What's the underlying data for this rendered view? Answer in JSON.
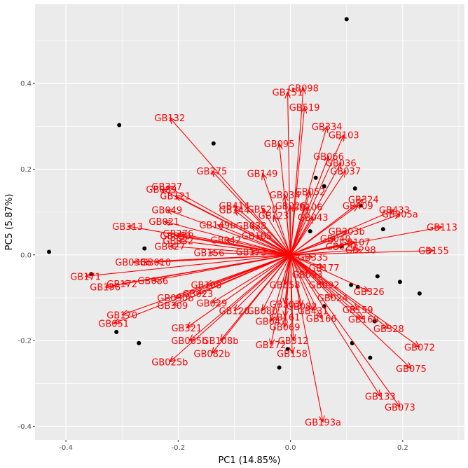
{
  "chart_data": {
    "type": "biplot",
    "xlabel": "PC1 (14.85%)",
    "ylabel": "PC5 (5.87%)",
    "xlim": [
      -0.455,
      0.31
    ],
    "ylim": [
      -0.432,
      0.585
    ],
    "x_ticks": [
      -0.4,
      -0.2,
      0.0,
      0.2
    ],
    "x_tick_labels": [
      "-0.4",
      "-0.2",
      "0.0",
      "0.2"
    ],
    "y_ticks": [
      -0.4,
      -0.2,
      0.0,
      0.2,
      0.4
    ],
    "y_tick_labels": [
      "-0.4",
      "-0.2",
      "0.0",
      "0.2",
      "0.4"
    ],
    "grid": true,
    "colors": {
      "panel": "#ebebeb",
      "grid": "#ffffff",
      "vector": "#ff0000",
      "point": "#000000"
    },
    "points": [
      {
        "x": 0.1,
        "y": 0.55
      },
      {
        "x": -0.305,
        "y": 0.303
      },
      {
        "x": -0.137,
        "y": 0.26
      },
      {
        "x": -0.43,
        "y": 0.007
      },
      {
        "x": -0.26,
        "y": 0.015
      },
      {
        "x": -0.355,
        "y": -0.045
      },
      {
        "x": -0.31,
        "y": -0.18
      },
      {
        "x": -0.27,
        "y": -0.206
      },
      {
        "x": -0.02,
        "y": -0.263
      },
      {
        "x": -0.005,
        "y": -0.22
      },
      {
        "x": 0.06,
        "y": 0.16
      },
      {
        "x": 0.115,
        "y": 0.155
      },
      {
        "x": 0.165,
        "y": 0.06
      },
      {
        "x": 0.155,
        "y": -0.05
      },
      {
        "x": 0.195,
        "y": -0.063
      },
      {
        "x": 0.23,
        "y": -0.09
      },
      {
        "x": 0.12,
        "y": -0.075
      },
      {
        "x": 0.108,
        "y": -0.07
      },
      {
        "x": 0.15,
        "y": -0.155
      },
      {
        "x": 0.11,
        "y": -0.206
      },
      {
        "x": 0.142,
        "y": -0.24
      },
      {
        "x": 0.06,
        "y": -0.12
      },
      {
        "x": 0.035,
        "y": 0.055
      },
      {
        "x": 0.09,
        "y": 0.02
      },
      {
        "x": 0.125,
        "y": 0.115
      },
      {
        "x": 0.045,
        "y": 0.18
      }
    ],
    "vectors": [
      {
        "label": "GB098",
        "x": 0.023,
        "y": 0.39
      },
      {
        "label": "GB151",
        "x": -0.005,
        "y": 0.38
      },
      {
        "label": "GB519",
        "x": 0.025,
        "y": 0.345
      },
      {
        "label": "GB132",
        "x": -0.215,
        "y": 0.32
      },
      {
        "label": "GB334",
        "x": 0.065,
        "y": 0.3
      },
      {
        "label": "GB103",
        "x": 0.095,
        "y": 0.28
      },
      {
        "label": "GB095",
        "x": -0.02,
        "y": 0.26
      },
      {
        "label": "GB066",
        "x": 0.068,
        "y": 0.23
      },
      {
        "label": "GB036",
        "x": 0.09,
        "y": 0.215
      },
      {
        "label": "GB037",
        "x": 0.098,
        "y": 0.196
      },
      {
        "label": "GB275",
        "x": -0.14,
        "y": 0.196
      },
      {
        "label": "GB149",
        "x": -0.05,
        "y": 0.19
      },
      {
        "label": "GB327",
        "x": -0.22,
        "y": 0.16
      },
      {
        "label": "GB089",
        "x": -0.23,
        "y": 0.153
      },
      {
        "label": "GB121",
        "x": -0.205,
        "y": 0.138
      },
      {
        "label": "GB052",
        "x": 0.035,
        "y": 0.148
      },
      {
        "label": "GB034",
        "x": -0.01,
        "y": 0.14
      },
      {
        "label": "GB324",
        "x": 0.13,
        "y": 0.13
      },
      {
        "label": "GB409",
        "x": 0.12,
        "y": 0.115
      },
      {
        "label": "GB433",
        "x": 0.185,
        "y": 0.105
      },
      {
        "label": "GB305a",
        "x": 0.195,
        "y": 0.095
      },
      {
        "label": "GB049",
        "x": -0.22,
        "y": 0.105
      },
      {
        "label": "GB021",
        "x": -0.225,
        "y": 0.078
      },
      {
        "label": "GB414",
        "x": -0.1,
        "y": 0.115
      },
      {
        "label": "GB144",
        "x": -0.1,
        "y": 0.105
      },
      {
        "label": "GB520",
        "x": -0.05,
        "y": 0.107
      },
      {
        "label": "GB123",
        "x": -0.03,
        "y": 0.092
      },
      {
        "label": "GB026",
        "x": 0.0,
        "y": 0.115
      },
      {
        "label": "GB106",
        "x": 0.03,
        "y": 0.112
      },
      {
        "label": "GB313",
        "x": -0.29,
        "y": 0.067
      },
      {
        "label": "GB113",
        "x": 0.27,
        "y": 0.065
      },
      {
        "label": "GB043",
        "x": 0.04,
        "y": 0.088
      },
      {
        "label": "GB040",
        "x": 0.08,
        "y": 0.038
      },
      {
        "label": "GB303b",
        "x": 0.1,
        "y": 0.055
      },
      {
        "label": "GB276",
        "x": -0.2,
        "y": 0.05
      },
      {
        "label": "GB149b",
        "x": -0.13,
        "y": 0.07
      },
      {
        "label": "GB038",
        "x": -0.07,
        "y": 0.068
      },
      {
        "label": "GB030",
        "x": -0.205,
        "y": 0.045
      },
      {
        "label": "GB042",
        "x": -0.115,
        "y": 0.035
      },
      {
        "label": "GB105",
        "x": -0.06,
        "y": 0.045
      },
      {
        "label": "GB032",
        "x": -0.2,
        "y": 0.033
      },
      {
        "label": "GB027",
        "x": -0.215,
        "y": 0.02
      },
      {
        "label": "GB107",
        "x": 0.115,
        "y": 0.03
      },
      {
        "label": "GB020",
        "x": 0.09,
        "y": 0.02
      },
      {
        "label": "GB298",
        "x": 0.125,
        "y": 0.012
      },
      {
        "label": "GB155",
        "x": 0.255,
        "y": 0.01
      },
      {
        "label": "GB335",
        "x": 0.04,
        "y": -0.005
      },
      {
        "label": "GB173",
        "x": -0.07,
        "y": 0.007
      },
      {
        "label": "GB156",
        "x": -0.145,
        "y": 0.005
      },
      {
        "label": "GB038b",
        "x": -0.28,
        "y": -0.017
      },
      {
        "label": "GB010",
        "x": -0.24,
        "y": -0.017
      },
      {
        "label": "GB177",
        "x": 0.06,
        "y": -0.03
      },
      {
        "label": "GB171",
        "x": -0.365,
        "y": -0.05
      },
      {
        "label": "GB196",
        "x": -0.33,
        "y": -0.075
      },
      {
        "label": "GB172",
        "x": -0.3,
        "y": -0.067
      },
      {
        "label": "GB086",
        "x": -0.245,
        "y": -0.06
      },
      {
        "label": "GB093",
        "x": 0.03,
        "y": -0.045
      },
      {
        "label": "GB092",
        "x": 0.06,
        "y": -0.07
      },
      {
        "label": "GB326",
        "x": 0.14,
        "y": -0.085
      },
      {
        "label": "GB108",
        "x": -0.15,
        "y": -0.07
      },
      {
        "label": "GB058",
        "x": -0.01,
        "y": -0.07
      },
      {
        "label": "GB023",
        "x": -0.165,
        "y": -0.09
      },
      {
        "label": "GB030b",
        "x": -0.205,
        "y": -0.1
      },
      {
        "label": "GB309",
        "x": -0.21,
        "y": -0.118
      },
      {
        "label": "GB170",
        "x": -0.3,
        "y": -0.14
      },
      {
        "label": "GB029",
        "x": -0.14,
        "y": -0.112
      },
      {
        "label": "GB120",
        "x": -0.1,
        "y": -0.13
      },
      {
        "label": "GB080",
        "x": -0.05,
        "y": -0.13
      },
      {
        "label": "GB203",
        "x": -0.01,
        "y": -0.115
      },
      {
        "label": "GB082",
        "x": 0.02,
        "y": -0.12
      },
      {
        "label": "GB431",
        "x": 0.04,
        "y": -0.13
      },
      {
        "label": "GB024",
        "x": 0.075,
        "y": -0.1
      },
      {
        "label": "GB159",
        "x": 0.12,
        "y": -0.128
      },
      {
        "label": "GB047",
        "x": -0.035,
        "y": -0.155
      },
      {
        "label": "GB161",
        "x": -0.01,
        "y": -0.145
      },
      {
        "label": "GB166",
        "x": 0.055,
        "y": -0.148
      },
      {
        "label": "GB160",
        "x": 0.13,
        "y": -0.15
      },
      {
        "label": "GB328",
        "x": 0.175,
        "y": -0.172
      },
      {
        "label": "GB051",
        "x": -0.315,
        "y": -0.16
      },
      {
        "label": "GB321",
        "x": -0.185,
        "y": -0.17
      },
      {
        "label": "GB069",
        "x": -0.01,
        "y": -0.168
      },
      {
        "label": "GB065b",
        "x": -0.18,
        "y": -0.2
      },
      {
        "label": "GB108b",
        "x": -0.125,
        "y": -0.2
      },
      {
        "label": "GB312",
        "x": 0.005,
        "y": -0.2
      },
      {
        "label": "GB272",
        "x": -0.035,
        "y": -0.21
      },
      {
        "label": "GB082b",
        "x": -0.14,
        "y": -0.23
      },
      {
        "label": "GB158",
        "x": 0.003,
        "y": -0.23
      },
      {
        "label": "GB072",
        "x": 0.23,
        "y": -0.215
      },
      {
        "label": "GB025b",
        "x": -0.215,
        "y": -0.25
      },
      {
        "label": "GB075",
        "x": 0.215,
        "y": -0.265
      },
      {
        "label": "GB133",
        "x": 0.16,
        "y": -0.33
      },
      {
        "label": "GB073",
        "x": 0.195,
        "y": -0.355
      },
      {
        "label": "GB193a",
        "x": 0.058,
        "y": -0.39
      }
    ]
  }
}
